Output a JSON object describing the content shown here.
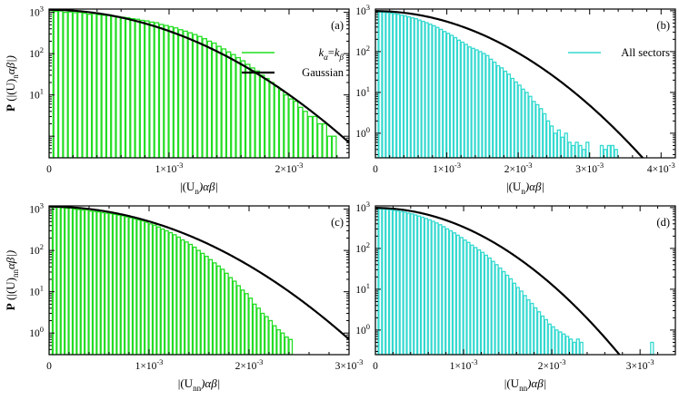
{
  "colors": {
    "green": "#22dd22",
    "cyan": "#33d9d0",
    "gaussian": "#000000"
  },
  "chart_data": [
    {
      "panel": "(a)",
      "type": "bar",
      "yscale": "log",
      "xlim": [
        0,
        0.0025
      ],
      "ylim": [
        0.3,
        1200
      ],
      "xticks": [
        0,
        0.001,
        0.002
      ],
      "xtick_labels": [
        "0",
        "1×10",
        "2×10"
      ],
      "xtick_exp": [
        "",
        "-3",
        "-3"
      ],
      "ytick_exps": [
        "0",
        "1",
        "2",
        "3"
      ],
      "yticks": [
        1,
        10,
        100,
        1000
      ],
      "show_ytick_1": false,
      "xlabel": "|(U)αβ|",
      "xlabel_main": "|(U",
      "xlabel_sub": "n",
      "xlabel_tail": ")αβ|",
      "ylabel_prefix": "P (|(U)",
      "ylabel_sub": "n",
      "ylabel_tail": "αβ|)",
      "legend": [
        {
          "label": "kα=kβ",
          "type": "hist"
        },
        {
          "label": "Gaussian",
          "type": "line"
        }
      ],
      "series": [
        {
          "name": "kα=kβ",
          "color": "green",
          "bins_width": 4e-05,
          "values": [
            1100,
            1050,
            1080,
            1000,
            1020,
            980,
            1000,
            950,
            900,
            930,
            880,
            850,
            870,
            800,
            790,
            760,
            740,
            700,
            680,
            640,
            620,
            580,
            560,
            510,
            480,
            450,
            420,
            380,
            350,
            320,
            290,
            260,
            230,
            200,
            180,
            150,
            130,
            110,
            95,
            80,
            67,
            55,
            45,
            38,
            30,
            25,
            20,
            16,
            13,
            10,
            8,
            7,
            5,
            4,
            3,
            3,
            2,
            2,
            1,
            1,
            0,
            0,
            0
          ]
        }
      ],
      "gaussian": {
        "amplitude": 1150,
        "sigma": 0.00065
      }
    },
    {
      "panel": "(b)",
      "type": "bar",
      "yscale": "log",
      "xlim": [
        0,
        0.0042
      ],
      "ylim": [
        0.25,
        1100
      ],
      "xticks": [
        0,
        0.001,
        0.002,
        0.003,
        0.004
      ],
      "xtick_labels": [
        "0",
        "1×10",
        "2×10",
        "3×10",
        "4×10"
      ],
      "xtick_exp": [
        "",
        "-3",
        "-3",
        "-3",
        "-3"
      ],
      "ytick_exps": [
        "0",
        "1",
        "2",
        "3"
      ],
      "yticks": [
        1,
        10,
        100,
        1000
      ],
      "xlabel": "|(U)αβ|",
      "xlabel_main": "|(U",
      "xlabel_sub": "n",
      "xlabel_tail": ")αβ|",
      "legend": [
        {
          "label": "All sectors",
          "type": "hist"
        }
      ],
      "series": [
        {
          "name": "All sectors",
          "color": "cyan",
          "bins_width": 5e-05,
          "values": [
            950,
            930,
            920,
            900,
            870,
            850,
            820,
            780,
            750,
            710,
            670,
            640,
            590,
            550,
            510,
            470,
            430,
            390,
            350,
            310,
            280,
            250,
            220,
            190,
            170,
            150,
            130,
            120,
            110,
            100,
            90,
            80,
            65,
            55,
            45,
            40,
            33,
            28,
            22,
            18,
            15,
            12,
            10,
            8,
            6,
            5,
            4,
            3,
            2,
            1.5,
            1,
            1.2,
            0.8,
            1,
            0.6,
            0.5,
            0.6,
            0.5,
            0.4,
            0.6,
            0,
            0,
            0,
            0.5,
            0.4,
            0.5,
            0.5,
            0.4,
            0,
            0,
            0,
            0,
            0,
            0,
            0,
            0,
            0,
            0,
            0,
            0,
            0,
            0,
            0,
            0
          ]
        }
      ],
      "gaussian": {
        "amplitude": 980,
        "sigma": 0.00092
      }
    },
    {
      "panel": "(c)",
      "type": "bar",
      "yscale": "log",
      "xlim": [
        0,
        0.003
      ],
      "ylim": [
        0.3,
        1200
      ],
      "xticks": [
        0,
        0.001,
        0.002,
        0.003
      ],
      "xtick_labels": [
        "0",
        "1×10",
        "2×10",
        "3×10"
      ],
      "xtick_exp": [
        "",
        "-3",
        "-3",
        "-3"
      ],
      "ytick_exps": [
        "0",
        "1",
        "2",
        "3"
      ],
      "yticks": [
        1,
        10,
        100,
        1000
      ],
      "xlabel": "|(U)αβ|",
      "xlabel_main": "|(U",
      "xlabel_sub": "nn",
      "xlabel_tail": ")αβ|",
      "ylabel_prefix": "P (|(U)",
      "ylabel_sub": "nn",
      "ylabel_tail": "αβ|)",
      "series": [
        {
          "name": "kα=kβ",
          "color": "green",
          "bins_width": 4e-05,
          "values": [
            1150,
            1100,
            1120,
            1080,
            1050,
            1060,
            1000,
            980,
            950,
            960,
            900,
            880,
            860,
            820,
            800,
            780,
            750,
            720,
            690,
            650,
            620,
            580,
            550,
            520,
            480,
            440,
            410,
            370,
            330,
            300,
            270,
            240,
            210,
            180,
            160,
            140,
            120,
            100,
            85,
            72,
            60,
            50,
            42,
            35,
            28,
            22,
            18,
            14,
            11,
            9,
            7,
            5,
            4,
            3,
            2.5,
            2,
            1.5,
            1.2,
            1,
            0.8,
            0.7,
            0,
            0,
            0,
            0,
            0,
            0,
            0,
            0,
            0,
            0,
            0,
            0,
            0,
            0
          ]
        }
      ],
      "gaussian": {
        "amplitude": 1150,
        "sigma": 0.00078
      }
    },
    {
      "panel": "(d)",
      "type": "bar",
      "yscale": "log",
      "xlim": [
        0,
        0.0034
      ],
      "ylim": [
        0.25,
        1100
      ],
      "xticks": [
        0,
        0.001,
        0.002,
        0.003
      ],
      "xtick_labels": [
        "0",
        "1×10",
        "2×10",
        "3×10"
      ],
      "xtick_exp": [
        "",
        "-3",
        "-3",
        "-3"
      ],
      "ytick_exps": [
        "0",
        "1",
        "2",
        "3"
      ],
      "yticks": [
        1,
        10,
        100,
        1000
      ],
      "xlabel": "|(U)αβ|",
      "xlabel_main": "|(U",
      "xlabel_sub": "nn",
      "xlabel_tail": ")αβ|",
      "series": [
        {
          "name": "All sectors",
          "color": "cyan",
          "bins_width": 4e-05,
          "values": [
            950,
            930,
            920,
            900,
            880,
            860,
            830,
            800,
            770,
            730,
            700,
            660,
            620,
            580,
            540,
            500,
            460,
            420,
            380,
            340,
            300,
            270,
            240,
            210,
            185,
            160,
            140,
            120,
            105,
            92,
            80,
            68,
            58,
            48,
            40,
            33,
            27,
            22,
            18,
            14,
            11,
            9,
            7,
            5.5,
            4.5,
            3.5,
            2.8,
            2.2,
            1.8,
            1.4,
            1.2,
            1,
            0.9,
            0.8,
            0.7,
            0.6,
            0.5,
            0.6,
            0.5,
            0,
            0,
            0,
            0,
            0,
            0,
            0,
            0,
            0,
            0,
            0,
            0,
            0,
            0,
            0,
            0,
            0,
            0,
            0,
            0.5,
            0,
            0,
            0,
            0,
            0
          ]
        }
      ],
      "gaussian": {
        "amplitude": 980,
        "sigma": 0.00068
      }
    }
  ]
}
